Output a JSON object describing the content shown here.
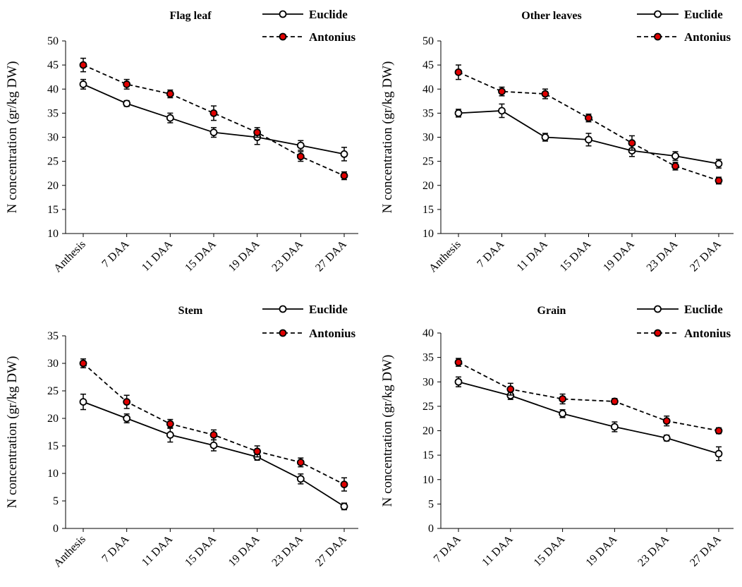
{
  "chart_data": [
    {
      "type": "line",
      "title": "Flag leaf",
      "ylabel": "N concentration (gr/kg DW)",
      "categories": [
        "Anthesis",
        "7 DAA",
        "11 DAA",
        "15 DAA",
        "19 DAA",
        "23 DAA",
        "27 DAA"
      ],
      "ylim": [
        10,
        50
      ],
      "yticks": [
        10,
        15,
        20,
        25,
        30,
        35,
        40,
        45,
        50
      ],
      "legend": "top-right",
      "series": [
        {
          "name": "Euclide",
          "style": "solid",
          "marker": "open-circle",
          "color": "#000000",
          "values": [
            41,
            37,
            34,
            31,
            30,
            28.3,
            26.5
          ],
          "errors": [
            1.0,
            0.6,
            1.0,
            1.0,
            1.5,
            1.0,
            1.4
          ]
        },
        {
          "name": "Antonius",
          "style": "dashed",
          "marker": "filled-circle",
          "color": "#e00000",
          "values": [
            45,
            41,
            39,
            35,
            31,
            26,
            22
          ],
          "errors": [
            1.4,
            1.0,
            0.8,
            1.5,
            1.0,
            1.0,
            0.8
          ]
        }
      ]
    },
    {
      "type": "line",
      "title": "Other leaves",
      "ylabel": "N concentration (gr/kg DW)",
      "categories": [
        "Anthesis",
        "7 DAA",
        "11 DAA",
        "15 DAA",
        "19 DAA",
        "23 DAA",
        "27 DAA"
      ],
      "ylim": [
        10,
        50
      ],
      "yticks": [
        10,
        15,
        20,
        25,
        30,
        35,
        40,
        45,
        50
      ],
      "legend": "top-right",
      "series": [
        {
          "name": "Euclide",
          "style": "solid",
          "marker": "open-circle",
          "color": "#000000",
          "values": [
            35,
            35.5,
            30,
            29.5,
            27.2,
            26.1,
            24.5
          ],
          "errors": [
            0.8,
            1.4,
            0.8,
            1.3,
            1.2,
            0.9,
            0.9
          ]
        },
        {
          "name": "Antonius",
          "style": "dashed",
          "marker": "filled-circle",
          "color": "#e00000",
          "values": [
            43.5,
            39.5,
            39,
            34,
            28.8,
            24,
            21
          ],
          "errors": [
            1.5,
            0.9,
            1.0,
            0.8,
            1.5,
            0.8,
            0.7
          ]
        }
      ]
    },
    {
      "type": "line",
      "title": "Stem",
      "ylabel": "N concentration (gr/kg DW)",
      "categories": [
        "Anthesis",
        "7 DAA",
        "11 DAA",
        "15 DAA",
        "19 DAA",
        "23 DAA",
        "27 DAA"
      ],
      "ylim": [
        0,
        35
      ],
      "yticks": [
        0,
        5,
        10,
        15,
        20,
        25,
        30,
        35
      ],
      "legend": "top-right",
      "series": [
        {
          "name": "Euclide",
          "style": "solid",
          "marker": "open-circle",
          "color": "#000000",
          "values": [
            23,
            20,
            17,
            15.1,
            13,
            9,
            4
          ],
          "errors": [
            1.4,
            0.8,
            1.3,
            1.0,
            0.6,
            0.9,
            0.6
          ]
        },
        {
          "name": "Antonius",
          "style": "dashed",
          "marker": "filled-circle",
          "color": "#e00000",
          "values": [
            30,
            23,
            19,
            17,
            14,
            12,
            8
          ],
          "errors": [
            0.8,
            1.2,
            0.8,
            0.9,
            1.0,
            0.8,
            1.2
          ]
        }
      ]
    },
    {
      "type": "line",
      "title": "Grain",
      "ylabel": "N concentration (gr/kg DW)",
      "categories": [
        "7 DAA",
        "11 DAA",
        "15 DAA",
        "19 DAA",
        "23 DAA",
        "27 DAA"
      ],
      "ylim": [
        0,
        40
      ],
      "yticks": [
        0,
        5,
        10,
        15,
        20,
        25,
        30,
        35,
        40
      ],
      "legend": "top-right",
      "series": [
        {
          "name": "Euclide",
          "style": "solid",
          "marker": "open-circle",
          "color": "#000000",
          "values": [
            30,
            27.2,
            23.5,
            20.8,
            18.5,
            15.3
          ],
          "errors": [
            1.0,
            0.8,
            0.8,
            1.0,
            0.6,
            1.4
          ]
        },
        {
          "name": "Antonius",
          "style": "dashed",
          "marker": "filled-circle",
          "color": "#e00000",
          "values": [
            34,
            28.5,
            26.5,
            26,
            22,
            20
          ],
          "errors": [
            0.8,
            1.2,
            1.0,
            0.6,
            1.0,
            0.6
          ]
        }
      ]
    }
  ]
}
